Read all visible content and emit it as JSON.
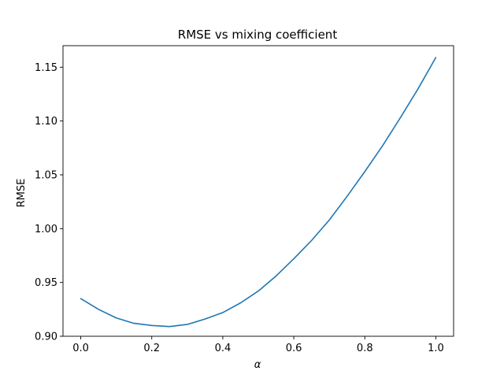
{
  "chart_data": {
    "type": "line",
    "title": "RMSE vs mixing coefficient",
    "xlabel": "α",
    "ylabel": "RMSE",
    "xlim": [
      -0.05,
      1.05
    ],
    "ylim": [
      0.9,
      1.17
    ],
    "xticks": [
      0.0,
      0.2,
      0.4,
      0.6,
      0.8,
      1.0
    ],
    "xtick_labels": [
      "0.0",
      "0.2",
      "0.4",
      "0.6",
      "0.8",
      "1.0"
    ],
    "yticks": [
      0.9,
      0.95,
      1.0,
      1.05,
      1.1,
      1.15
    ],
    "ytick_labels": [
      "0.90",
      "0.95",
      "1.00",
      "1.05",
      "1.10",
      "1.15"
    ],
    "grid": false,
    "legend": "none",
    "series": [
      {
        "color": "#1f77b4",
        "x": [
          0.0,
          0.05,
          0.1,
          0.15,
          0.2,
          0.25,
          0.3,
          0.35,
          0.4,
          0.45,
          0.5,
          0.55,
          0.6,
          0.65,
          0.7,
          0.75,
          0.8,
          0.85,
          0.9,
          0.95,
          1.0
        ],
        "y": [
          0.935,
          0.925,
          0.917,
          0.912,
          0.91,
          0.909,
          0.911,
          0.916,
          0.922,
          0.931,
          0.942,
          0.956,
          0.972,
          0.989,
          1.008,
          1.03,
          1.053,
          1.077,
          1.103,
          1.13,
          1.159
        ]
      }
    ]
  }
}
